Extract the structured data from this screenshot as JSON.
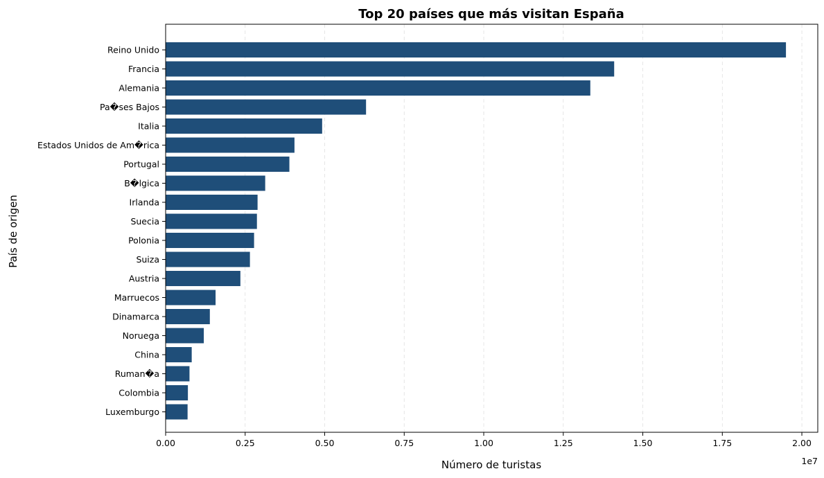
{
  "chart_data": {
    "type": "bar",
    "orientation": "horizontal",
    "title": "Top 20 países que más visitan España",
    "xlabel": "Número de turistas",
    "ylabel": "País de origen",
    "x_offset_label": "1e7",
    "xlim": [
      0,
      20500000
    ],
    "x_ticks": [
      0,
      2500000,
      5000000,
      7500000,
      10000000,
      12500000,
      15000000,
      17500000,
      20000000
    ],
    "x_tick_labels": [
      "0.00",
      "0.25",
      "0.50",
      "0.75",
      "1.00",
      "1.25",
      "1.50",
      "1.75",
      "2.00"
    ],
    "grid": {
      "x": true,
      "y": false,
      "style": "dashed"
    },
    "bar_color": "#1f4e79",
    "categories": [
      "Reino Unido",
      "Francia",
      "Alemania",
      "Pa�ses Bajos",
      "Italia",
      "Estados Unidos de Am�rica",
      "Portugal",
      "B�lgica",
      "Irlanda",
      "Suecia",
      "Polonia",
      "Suiza",
      "Austria",
      "Marruecos",
      "Dinamarca",
      "Noruega",
      "China",
      "Ruman�a",
      "Colombia",
      "Luxemburgo"
    ],
    "values": [
      19500000,
      14100000,
      13350000,
      6300000,
      4920000,
      4050000,
      3890000,
      3130000,
      2890000,
      2870000,
      2780000,
      2650000,
      2350000,
      1570000,
      1390000,
      1200000,
      820000,
      750000,
      700000,
      690000
    ]
  }
}
